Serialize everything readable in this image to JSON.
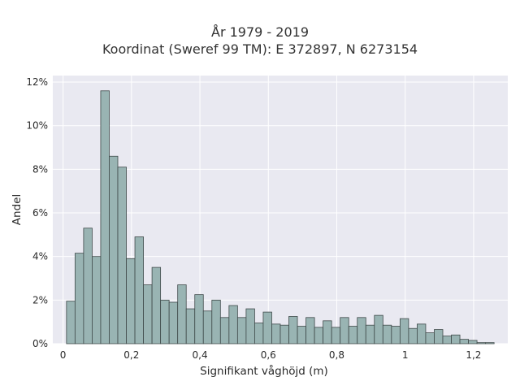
{
  "chart_data": {
    "type": "bar",
    "title_lines": [
      "År 1979 - 2019",
      "Koordinat (Sweref 99 TM): E 372897, N 6273154"
    ],
    "xlabel": "Signifikant våghöjd (m)",
    "ylabel": "Andel",
    "xlim": [
      -0.03,
      1.3
    ],
    "ylim": [
      0,
      12.3
    ],
    "x_ticks": [
      0,
      0.2,
      0.4,
      0.6,
      0.8,
      1.0,
      1.2
    ],
    "x_tick_labels": [
      "0",
      "0,2",
      "0,4",
      "0,6",
      "0,8",
      "1",
      "1,2"
    ],
    "y_ticks": [
      0,
      2,
      4,
      6,
      8,
      10,
      12
    ],
    "y_tick_labels": [
      "0%",
      "2%",
      "4%",
      "6%",
      "8%",
      "10%",
      "12%"
    ],
    "bin_width": 0.025,
    "bins_start": 0.01,
    "values": [
      1.95,
      4.15,
      5.3,
      4.0,
      11.6,
      8.6,
      8.1,
      3.9,
      4.9,
      2.7,
      3.5,
      2.0,
      1.9,
      2.7,
      1.6,
      2.25,
      1.5,
      2.0,
      1.2,
      1.75,
      1.2,
      1.6,
      0.95,
      1.45,
      0.9,
      0.85,
      1.25,
      0.8,
      1.2,
      0.75,
      1.05,
      0.75,
      1.2,
      0.8,
      1.2,
      0.85,
      1.3,
      0.85,
      0.8,
      1.15,
      0.7,
      0.9,
      0.5,
      0.65,
      0.35,
      0.4,
      0.2,
      0.15,
      0.05,
      0.05
    ],
    "grid": true,
    "colors": {
      "bar_fill": "#99b4b3",
      "bar_edge": "#3f4a4a",
      "plot_bg": "#e9e9f1",
      "grid": "#ffffff"
    }
  }
}
